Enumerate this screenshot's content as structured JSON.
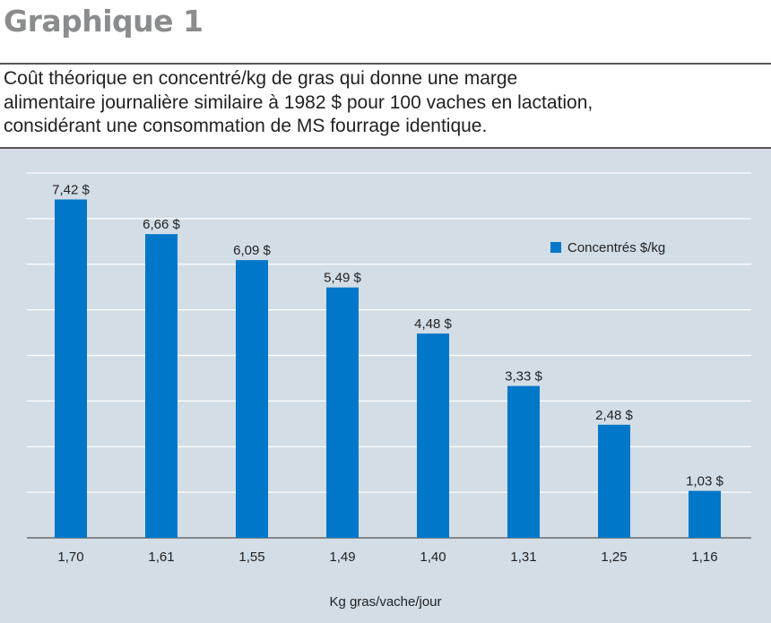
{
  "heading": "Graphique 1",
  "caption_lines": [
    "Coût théorique en concentré/kg de gras qui donne une marge",
    "alimentaire journalière similaire à 1982 $ pour 100 vaches en lactation,",
    "considérant une consommation de MS fourrage identique."
  ],
  "colors": {
    "bar": "#0077c8",
    "panel": "#d2dde6",
    "grid": "#ffffff"
  },
  "chart_data": {
    "type": "bar",
    "categories": [
      "1,70",
      "1,61",
      "1,55",
      "1,49",
      "1,40",
      "1,31",
      "1,25",
      "1,16"
    ],
    "series": [
      {
        "name": "Concentrés $/kg",
        "values": [
          7.42,
          6.66,
          6.09,
          5.49,
          4.48,
          3.33,
          2.48,
          1.03
        ],
        "labels": [
          "7,42 $",
          "6,66 $",
          "6,09 $",
          "5,49 $",
          "4,48 $",
          "3,33 $",
          "2,48 $",
          "1,03 $"
        ]
      }
    ],
    "xlabel": "Kg gras/vache/jour",
    "ylabel": "",
    "ylim": [
      0,
      8
    ],
    "y_ticks": [
      1,
      2,
      3,
      4,
      5,
      6,
      7,
      8
    ],
    "grid": true,
    "legend": "top-right"
  }
}
